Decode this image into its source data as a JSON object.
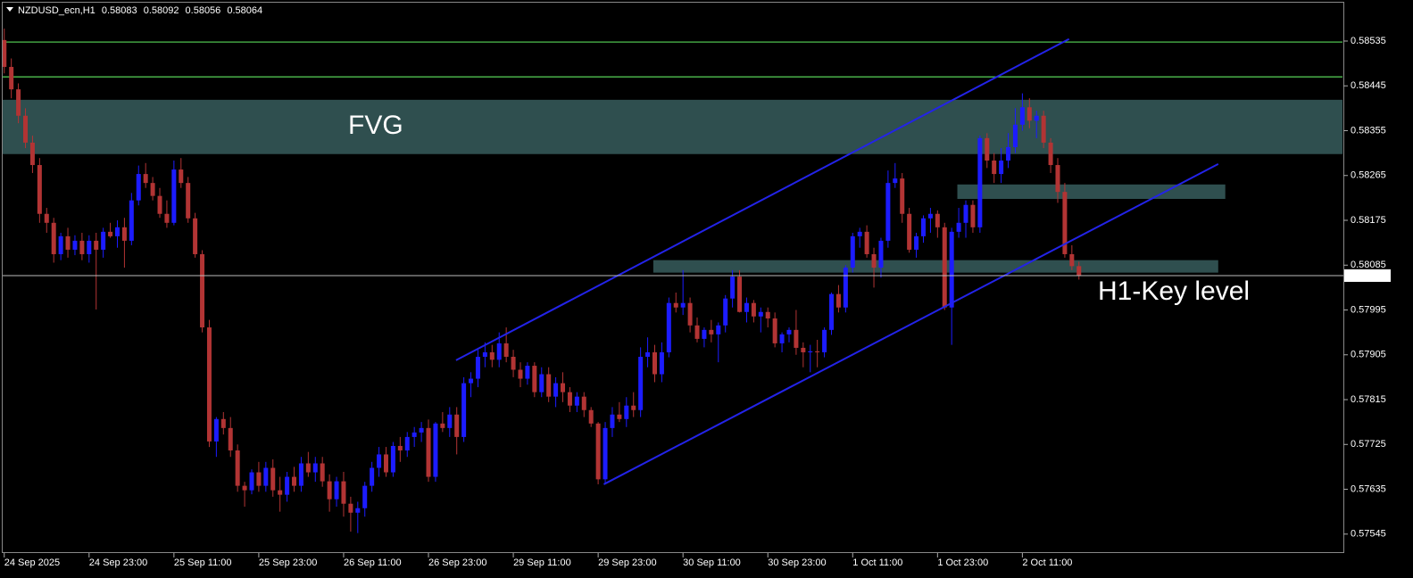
{
  "chart_data": {
    "type": "candlestick",
    "title": "NZDUSD_ecn,H1",
    "up_color": "#1c1cff",
    "down_color": "#b23434",
    "background": "#000000",
    "ylim": [
      0.57507,
      0.58612
    ],
    "xlim": [
      -0.6,
      189.4
    ],
    "yticks": [
      0.58535,
      0.58445,
      0.58355,
      0.58265,
      0.58175,
      0.58085,
      0.57995,
      0.57905,
      0.57815,
      0.57725,
      0.57635,
      0.57545
    ],
    "xticks": [
      {
        "value": 0,
        "label": "24 Sep 2025"
      },
      {
        "value": 12,
        "label": "24 Sep 23:00"
      },
      {
        "value": 24,
        "label": "25 Sep 11:00"
      },
      {
        "value": 36,
        "label": "25 Sep 23:00"
      },
      {
        "value": 48,
        "label": "26 Sep 11:00"
      },
      {
        "value": 60,
        "label": "26 Sep 23:00"
      },
      {
        "value": 72,
        "label": "29 Sep 11:00"
      },
      {
        "value": 84,
        "label": "29 Sep 23:00"
      },
      {
        "value": 96,
        "label": "30 Sep 11:00"
      },
      {
        "value": 108,
        "label": "30 Sep 23:00"
      },
      {
        "value": 120,
        "label": "1 Oct 11:00"
      },
      {
        "value": 132,
        "label": "1 Oct 23:00"
      },
      {
        "value": 144,
        "label": "2 Oct 11:00"
      }
    ],
    "levels": {
      "color": "#4fbf4f",
      "values": [
        0.58533,
        0.58463
      ]
    },
    "zone_color": "#2f4f4f",
    "zones": [
      {
        "label": "FVG",
        "label_color": "#ffff00",
        "ylim": [
          0.58308,
          0.58417
        ]
      },
      {
        "xlim": [
          134.8,
          172.7
        ],
        "ylim": [
          0.58218,
          0.58247
        ]
      },
      {
        "label": "H1-Key level",
        "label_color": "#ffffff",
        "xlim": [
          91.8,
          171.7
        ],
        "ylim": [
          0.5807,
          0.58095
        ]
      }
    ],
    "trendline_color": "#2323e8",
    "trendlines": [
      {
        "x": [
          63.9,
          150.6
        ],
        "y": [
          0.57894,
          0.58539
        ]
      },
      {
        "x": [
          84.8,
          171.7
        ],
        "y": [
          0.57645,
          0.58288
        ]
      }
    ],
    "candles": [
      [
        0.58537,
        0.5856,
        0.5847,
        0.58483
      ],
      [
        0.58483,
        0.585,
        0.5842,
        0.58438
      ],
      [
        0.58438,
        0.5845,
        0.5837,
        0.58385
      ],
      [
        0.58385,
        0.584,
        0.5832,
        0.58331
      ],
      [
        0.58331,
        0.58345,
        0.5827,
        0.58286
      ],
      [
        0.58286,
        0.583,
        0.5817,
        0.58188
      ],
      [
        0.58188,
        0.582,
        0.5815,
        0.5817
      ],
      [
        0.5817,
        0.5818,
        0.5809,
        0.58107
      ],
      [
        0.58107,
        0.5815,
        0.58095,
        0.58143
      ],
      [
        0.58143,
        0.5816,
        0.581,
        0.58116
      ],
      [
        0.58116,
        0.58145,
        0.58105,
        0.58134
      ],
      [
        0.58134,
        0.5815,
        0.58095,
        0.58107
      ],
      [
        0.58107,
        0.58145,
        0.5809,
        0.58134
      ],
      [
        0.58134,
        0.5815,
        0.57996,
        0.58116
      ],
      [
        0.58116,
        0.5816,
        0.581,
        0.58152
      ],
      [
        0.58152,
        0.5817,
        0.5814,
        0.58143
      ],
      [
        0.58143,
        0.58175,
        0.5812,
        0.58161
      ],
      [
        0.58161,
        0.5818,
        0.5808,
        0.58134
      ],
      [
        0.58134,
        0.5823,
        0.58125,
        0.58215
      ],
      [
        0.58215,
        0.58285,
        0.58205,
        0.58268
      ],
      [
        0.58268,
        0.5829,
        0.5824,
        0.5825
      ],
      [
        0.5825,
        0.58262,
        0.58215,
        0.58224
      ],
      [
        0.58224,
        0.5824,
        0.5818,
        0.58188
      ],
      [
        0.58188,
        0.58215,
        0.5816,
        0.5817
      ],
      [
        0.5817,
        0.58295,
        0.58165,
        0.58277
      ],
      [
        0.58277,
        0.583,
        0.5824,
        0.5825
      ],
      [
        0.5825,
        0.58262,
        0.5817,
        0.58179
      ],
      [
        0.58179,
        0.5819,
        0.581,
        0.58107
      ],
      [
        0.58107,
        0.58115,
        0.5795,
        0.5796
      ],
      [
        0.5796,
        0.57975,
        0.5772,
        0.57731
      ],
      [
        0.57731,
        0.5778,
        0.577,
        0.57776
      ],
      [
        0.57776,
        0.5779,
        0.57745,
        0.57758
      ],
      [
        0.57758,
        0.5778,
        0.577,
        0.57713
      ],
      [
        0.57713,
        0.57725,
        0.5763,
        0.57642
      ],
      [
        0.57642,
        0.5765,
        0.576,
        0.57633
      ],
      [
        0.57633,
        0.57675,
        0.57625,
        0.57669
      ],
      [
        0.57669,
        0.5769,
        0.5763,
        0.57642
      ],
      [
        0.57642,
        0.5769,
        0.5763,
        0.57678
      ],
      [
        0.57678,
        0.57695,
        0.5762,
        0.57633
      ],
      [
        0.57633,
        0.5766,
        0.5759,
        0.57624
      ],
      [
        0.57624,
        0.5767,
        0.5761,
        0.5766
      ],
      [
        0.5766,
        0.5768,
        0.5763,
        0.57642
      ],
      [
        0.57642,
        0.577,
        0.5763,
        0.57687
      ],
      [
        0.57687,
        0.5771,
        0.5766,
        0.57669
      ],
      [
        0.57669,
        0.577,
        0.5765,
        0.57687
      ],
      [
        0.57687,
        0.577,
        0.5764,
        0.57651
      ],
      [
        0.57651,
        0.57665,
        0.5759,
        0.57615
      ],
      [
        0.57615,
        0.5766,
        0.576,
        0.57651
      ],
      [
        0.57651,
        0.5767,
        0.5758,
        0.57606
      ],
      [
        0.57606,
        0.5762,
        0.5755,
        0.57588
      ],
      [
        0.57588,
        0.5761,
        0.57547,
        0.57597
      ],
      [
        0.57597,
        0.5765,
        0.5758,
        0.57642
      ],
      [
        0.57642,
        0.5769,
        0.5763,
        0.57678
      ],
      [
        0.57678,
        0.5772,
        0.5766,
        0.57705
      ],
      [
        0.57705,
        0.5772,
        0.5766,
        0.57669
      ],
      [
        0.57669,
        0.5773,
        0.5766,
        0.57722
      ],
      [
        0.57722,
        0.5774,
        0.5769,
        0.57713
      ],
      [
        0.57713,
        0.5775,
        0.577,
        0.5774
      ],
      [
        0.5774,
        0.5776,
        0.5772,
        0.57749
      ],
      [
        0.57749,
        0.5777,
        0.5773,
        0.57758
      ],
      [
        0.57758,
        0.57775,
        0.5765,
        0.5766
      ],
      [
        0.5766,
        0.5777,
        0.5765,
        0.57767
      ],
      [
        0.57767,
        0.5779,
        0.5775,
        0.57758
      ],
      [
        0.57758,
        0.578,
        0.5774,
        0.57785
      ],
      [
        0.57785,
        0.578,
        0.57705,
        0.5774
      ],
      [
        0.5774,
        0.5786,
        0.5773,
        0.57848
      ],
      [
        0.57848,
        0.5787,
        0.5782,
        0.57857
      ],
      [
        0.57857,
        0.57915,
        0.5784,
        0.57901
      ],
      [
        0.57901,
        0.5793,
        0.5788,
        0.5791
      ],
      [
        0.5791,
        0.57925,
        0.5788,
        0.57895
      ],
      [
        0.57895,
        0.5795,
        0.5788,
        0.57928
      ],
      [
        0.57928,
        0.5796,
        0.5789,
        0.57901
      ],
      [
        0.57901,
        0.57915,
        0.5786,
        0.57875
      ],
      [
        0.57875,
        0.5789,
        0.5784,
        0.57857
      ],
      [
        0.57857,
        0.5789,
        0.57845,
        0.57883
      ],
      [
        0.57883,
        0.5789,
        0.5782,
        0.5783
      ],
      [
        0.5783,
        0.5788,
        0.5782,
        0.57866
      ],
      [
        0.57866,
        0.5788,
        0.5781,
        0.57821
      ],
      [
        0.57821,
        0.5786,
        0.578,
        0.57848
      ],
      [
        0.57848,
        0.5787,
        0.5781,
        0.5783
      ],
      [
        0.5783,
        0.5784,
        0.5779,
        0.57803
      ],
      [
        0.57803,
        0.5783,
        0.5779,
        0.57821
      ],
      [
        0.57821,
        0.5783,
        0.5778,
        0.57794
      ],
      [
        0.57794,
        0.578,
        0.5776,
        0.57767
      ],
      [
        0.57767,
        0.5777,
        0.57645,
        0.57655
      ],
      [
        0.57655,
        0.5777,
        0.57645,
        0.57758
      ],
      [
        0.57758,
        0.578,
        0.5774,
        0.57785
      ],
      [
        0.57785,
        0.5781,
        0.5777,
        0.57776
      ],
      [
        0.57776,
        0.5782,
        0.5776,
        0.57803
      ],
      [
        0.57803,
        0.5783,
        0.5778,
        0.57794
      ],
      [
        0.57794,
        0.5792,
        0.5778,
        0.57901
      ],
      [
        0.57901,
        0.5794,
        0.5788,
        0.5791
      ],
      [
        0.5791,
        0.57925,
        0.5785,
        0.57866
      ],
      [
        0.57866,
        0.5793,
        0.5785,
        0.5791
      ],
      [
        0.5791,
        0.5802,
        0.579,
        0.58009
      ],
      [
        0.58009,
        0.5803,
        0.5799,
        0.58
      ],
      [
        0.58,
        0.58075,
        0.57985,
        0.58009
      ],
      [
        0.58009,
        0.5802,
        0.5795,
        0.57964
      ],
      [
        0.57964,
        0.5798,
        0.5793,
        0.57937
      ],
      [
        0.57937,
        0.5796,
        0.5792,
        0.57955
      ],
      [
        0.57955,
        0.57975,
        0.5793,
        0.57946
      ],
      [
        0.57946,
        0.5797,
        0.5789,
        0.57964
      ],
      [
        0.57964,
        0.58025,
        0.5795,
        0.58018
      ],
      [
        0.58018,
        0.58075,
        0.58,
        0.58062
      ],
      [
        0.58062,
        0.58075,
        0.5799,
        0.57991
      ],
      [
        0.57991,
        0.5802,
        0.5797,
        0.58009
      ],
      [
        0.58009,
        0.58015,
        0.5797,
        0.57982
      ],
      [
        0.57982,
        0.58,
        0.5795,
        0.57991
      ],
      [
        0.57991,
        0.58,
        0.5796,
        0.57978
      ],
      [
        0.57978,
        0.5799,
        0.5792,
        0.57928
      ],
      [
        0.57928,
        0.5795,
        0.5791,
        0.57946
      ],
      [
        0.57946,
        0.5796,
        0.5793,
        0.57955
      ],
      [
        0.57955,
        0.57995,
        0.57905,
        0.57919
      ],
      [
        0.57919,
        0.5793,
        0.5788,
        0.5791
      ],
      [
        0.5791,
        0.57925,
        0.5787,
        0.57912
      ],
      [
        0.57912,
        0.57935,
        0.5788,
        0.5791
      ],
      [
        0.5791,
        0.5796,
        0.579,
        0.57955
      ],
      [
        0.57955,
        0.5803,
        0.57945,
        0.58027
      ],
      [
        0.58027,
        0.58045,
        0.5799,
        0.58
      ],
      [
        0.58,
        0.58085,
        0.5799,
        0.5808
      ],
      [
        0.5808,
        0.5815,
        0.5807,
        0.58143
      ],
      [
        0.58143,
        0.5816,
        0.5812,
        0.58152
      ],
      [
        0.58152,
        0.58165,
        0.581,
        0.58107
      ],
      [
        0.58107,
        0.5812,
        0.5804,
        0.5808
      ],
      [
        0.5808,
        0.5814,
        0.5806,
        0.58134
      ],
      [
        0.58134,
        0.58275,
        0.5812,
        0.5825
      ],
      [
        0.5825,
        0.5829,
        0.5824,
        0.58259
      ],
      [
        0.58259,
        0.5827,
        0.5817,
        0.58188
      ],
      [
        0.58188,
        0.582,
        0.5811,
        0.58116
      ],
      [
        0.58116,
        0.5815,
        0.581,
        0.58143
      ],
      [
        0.58143,
        0.58185,
        0.5813,
        0.58179
      ],
      [
        0.58179,
        0.582,
        0.5815,
        0.58188
      ],
      [
        0.58188,
        0.58195,
        0.5814,
        0.58161
      ],
      [
        0.58161,
        0.5817,
        0.57995,
        0.58
      ],
      [
        0.58,
        0.5816,
        0.57925,
        0.58152
      ],
      [
        0.58152,
        0.582,
        0.5814,
        0.5817
      ],
      [
        0.5817,
        0.58215,
        0.5814,
        0.58206
      ],
      [
        0.58206,
        0.58215,
        0.5815,
        0.58161
      ],
      [
        0.58161,
        0.58345,
        0.5815,
        0.5834
      ],
      [
        0.5834,
        0.5835,
        0.5828,
        0.58295
      ],
      [
        0.58295,
        0.5831,
        0.5825,
        0.58268
      ],
      [
        0.58268,
        0.5832,
        0.5825,
        0.58295
      ],
      [
        0.58295,
        0.5835,
        0.5828,
        0.58322
      ],
      [
        0.58322,
        0.584,
        0.5831,
        0.58367
      ],
      [
        0.58367,
        0.5843,
        0.58355,
        0.58402
      ],
      [
        0.58402,
        0.5842,
        0.5836,
        0.58375
      ],
      [
        0.58375,
        0.58395,
        0.5834,
        0.58385
      ],
      [
        0.58385,
        0.58395,
        0.5832,
        0.58331
      ],
      [
        0.58331,
        0.5834,
        0.5827,
        0.58286
      ],
      [
        0.58286,
        0.583,
        0.5821,
        0.58232
      ],
      [
        0.58232,
        0.5825,
        0.581,
        0.58107
      ],
      [
        0.58107,
        0.58125,
        0.58075,
        0.58083
      ],
      [
        0.58083,
        0.58092,
        0.58056,
        0.58064
      ]
    ]
  }
}
